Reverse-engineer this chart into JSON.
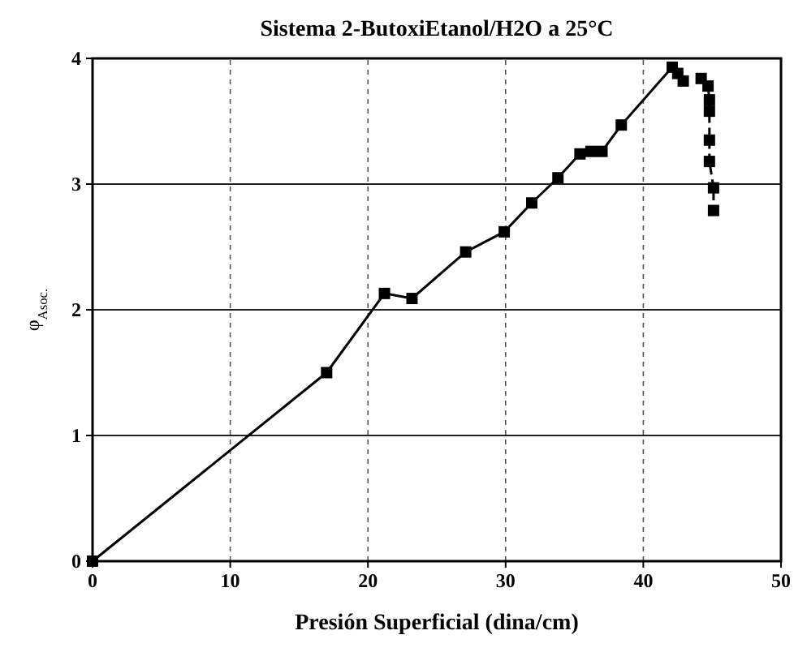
{
  "chart_data": {
    "type": "line",
    "title": "Sistema 2-ButoxiEtanol/H2O a 25°C",
    "xlabel": "Presión Superficial (dina/cm)",
    "ylabel": "φ$_{Asoc.}$",
    "xlim": [
      0,
      50
    ],
    "xticks": [
      0,
      10,
      20,
      30,
      40,
      50
    ],
    "ylim": [
      0,
      4
    ],
    "yticks": [
      0,
      1,
      2,
      3,
      4
    ],
    "grid": true,
    "marker": "square",
    "series": [
      {
        "color": "#000000",
        "line_style": "solid",
        "x": [
          0,
          17,
          21.2,
          23.2,
          27.1,
          29.9,
          31.9,
          33.8,
          35.4,
          36.2,
          37,
          38.4,
          42.1,
          42.5,
          42.9
        ],
        "values": [
          0,
          1.5,
          2.13,
          2.09,
          2.46,
          2.62,
          2.85,
          3.05,
          3.24,
          3.26,
          3.26,
          3.47,
          3.93,
          3.88,
          3.82
        ]
      },
      {
        "color": "#000000",
        "line_style": "dashed",
        "x": [
          44.2,
          44.7,
          44.8,
          44.8,
          44.8,
          44.8,
          45.1,
          45.1
        ],
        "values": [
          3.84,
          3.78,
          3.67,
          3.58,
          3.35,
          3.18,
          2.97,
          2.79
        ]
      }
    ]
  }
}
